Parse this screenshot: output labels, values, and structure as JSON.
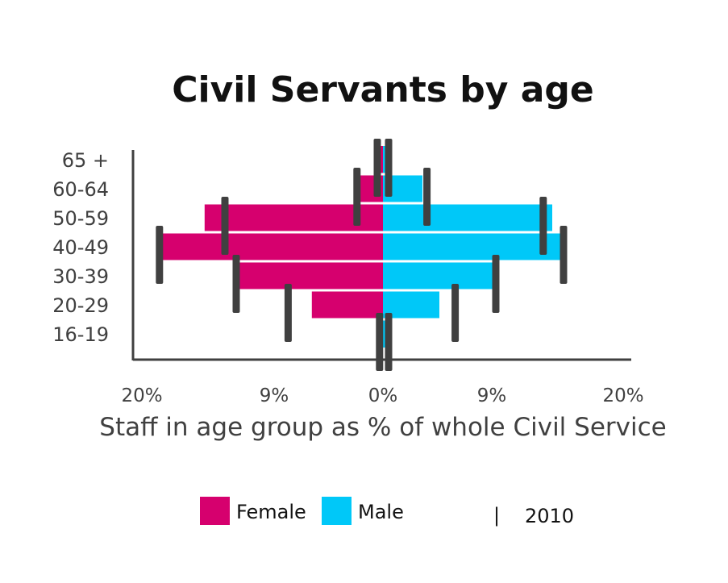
{
  "chart_data": {
    "type": "bar",
    "orientation": "horizontal-population-pyramid",
    "title": "Civil Servants by age",
    "xlabel": "Staff in age group as % of whole Civil Service",
    "categories": [
      "65 +",
      "60-64",
      "50-59",
      "40-49",
      "30-39",
      "20-29",
      "16-19"
    ],
    "x_tick_labels": [
      "20%",
      "9%",
      "0%",
      "9%",
      "20%"
    ],
    "xlim": [
      -20,
      20
    ],
    "series": [
      {
        "name": "Female",
        "color": "#d6006e",
        "values": [
          0.6,
          2.0,
          15.8,
          19.5,
          12.7,
          6.3,
          0.2
        ]
      },
      {
        "name": "Male",
        "color": "#00c8f8",
        "values": [
          0.4,
          3.5,
          15.0,
          15.8,
          9.7,
          5.0,
          0.2
        ]
      }
    ],
    "markers": {
      "name": "2010",
      "color": "#404040",
      "female": [
        0.5,
        2.3,
        14.0,
        19.8,
        13.0,
        8.4,
        0.3
      ],
      "male": [
        0.5,
        3.9,
        14.2,
        16.0,
        10.0,
        6.4,
        0.5
      ]
    },
    "legend": {
      "position": "bottom",
      "items": [
        {
          "label": "Female",
          "color": "#d6006e"
        },
        {
          "label": "Male",
          "color": "#00c8f8"
        },
        {
          "label": "2010",
          "symbol": "|"
        }
      ]
    },
    "grid": false
  }
}
